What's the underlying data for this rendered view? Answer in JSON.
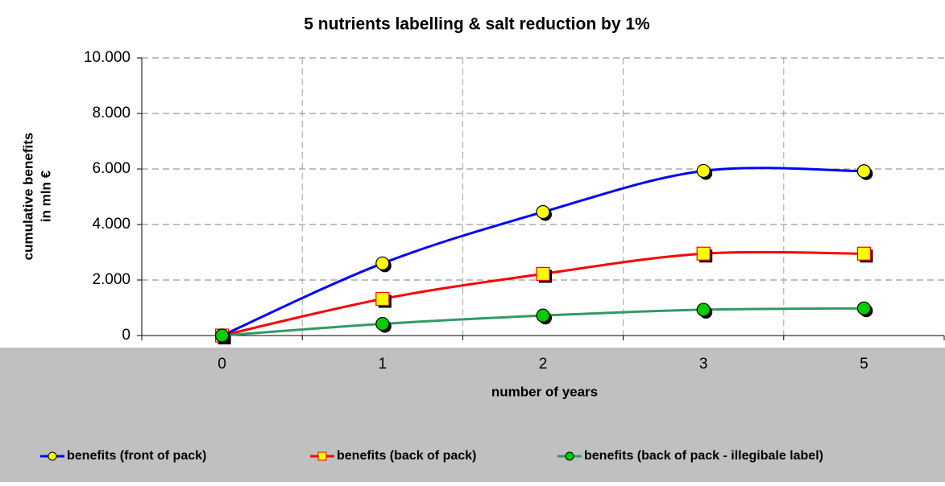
{
  "chart_data": {
    "type": "line",
    "title": "5 nutrients labelling & salt reduction by 1%",
    "x_label": "number of years",
    "y_label": [
      "cumulative benefits",
      "in mln €"
    ],
    "categories": [
      "0",
      "1",
      "2",
      "3",
      "5"
    ],
    "ylim": [
      0,
      10000
    ],
    "yticks": [
      0,
      {
        "value": 2000,
        "label": "2.000"
      },
      {
        "value": 4000,
        "label": "4.000"
      },
      {
        "value": 6000,
        "label": "6.000"
      },
      {
        "value": 8000,
        "label": "8.000"
      },
      {
        "value": 10000,
        "label": "10.000"
      }
    ],
    "grid": true,
    "smooth": true,
    "legend": "bottom",
    "series": [
      {
        "name": "benefits (front of pack)",
        "color": "#0000ff",
        "marker": "circle",
        "marker_color": "#ffff00",
        "values": [
          0,
          2600,
          4450,
          5930,
          5920
        ]
      },
      {
        "name": "benefits (back of pack)",
        "color": "#ff0000",
        "marker": "square",
        "marker_color": "#ffff00",
        "values": [
          0,
          1320,
          2220,
          2950,
          2950
        ]
      },
      {
        "name": "benefits (back of pack - illegibale label)",
        "color": "#339966",
        "marker": "circle",
        "marker_color": "#00cc00",
        "values": [
          0,
          420,
          720,
          930,
          980
        ]
      }
    ]
  }
}
